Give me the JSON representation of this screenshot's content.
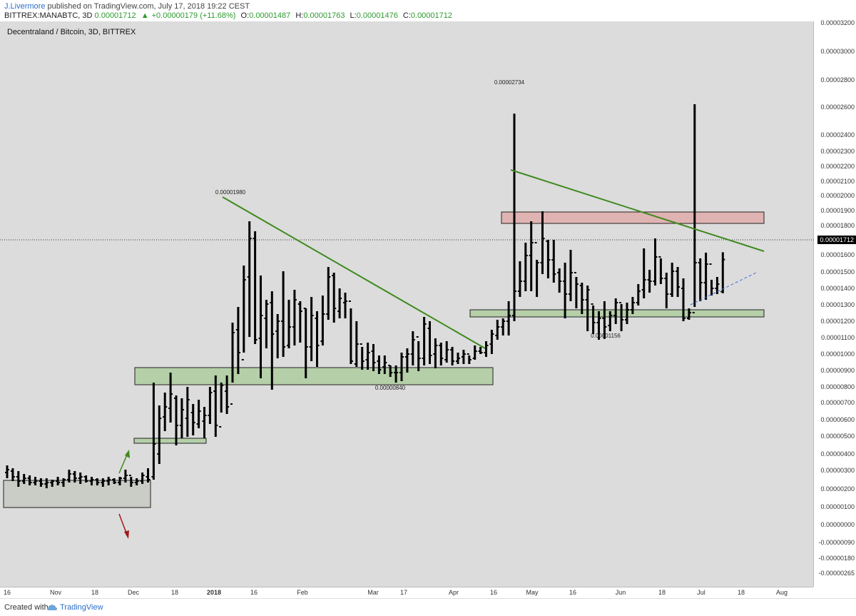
{
  "header": {
    "author": "J.Livermore",
    "published": "published on TradingView.com, July 17, 2018 19:22 CEST",
    "symbol": "BITTREX:MANABTC, 3D",
    "last": "0.00001712",
    "change": "+0.00000179 (+11.68%)",
    "o_label": "O:",
    "o_value": "0.00001487",
    "h_label": "H:",
    "h_value": "0.00001763",
    "l_label": "L:",
    "l_value": "0.00001476",
    "c_label": "C:",
    "c_value": "0.00001712"
  },
  "chart_title": "Decentraland / Bitcoin, 3D, BITTREX",
  "footer": {
    "created_with": "Created with",
    "brand": "TradingView"
  },
  "current_price_label": "0.00001712",
  "annotations": {
    "high1": "0.00001980",
    "high2": "0.00002734",
    "low1": "0.00000840",
    "low2": "0.00001156"
  },
  "colors": {
    "background": "#dcdcdc",
    "bars": "#000000",
    "trendline": "#3f8a1f",
    "support_zone": "#b5cfa9",
    "resistance_zone": "#e0b3b3",
    "up_arrow": "#3f8a1f",
    "down_arrow": "#a11a1a",
    "dashed_line": "#4a6fd8"
  },
  "icons": {
    "tradingview": "tradingview-cloud-icon"
  },
  "chart_data": {
    "type": "bar",
    "title": "Decentraland / Bitcoin, 3D, BITTREX",
    "x_ticks": [
      "16",
      "Nov",
      "18",
      "Dec",
      "18",
      "2018",
      "16",
      "Feb",
      "Mar",
      "17",
      "Apr",
      "16",
      "May",
      "16",
      "Jun",
      "18",
      "Jul",
      "18",
      "Aug"
    ],
    "y_ticks": [
      "0.00003200",
      "0.00003000",
      "0.00002800",
      "0.00002600",
      "0.00002400",
      "0.00002300",
      "0.00002200",
      "0.00002100",
      "0.00002000",
      "0.00001900",
      "0.00001800",
      "0.00001700",
      "0.00001600",
      "0.00001500",
      "0.00001400",
      "0.00001300",
      "0.00001200",
      "0.00001100",
      "0.00001000",
      "0.00000900",
      "0.00000800",
      "0.00000700",
      "0.00000600",
      "0.00000500",
      "0.00000400",
      "0.00000300",
      "0.00000200",
      "0.00000100",
      "0.00000000",
      "-0.00000090",
      "-0.00000180",
      "-0.00000265"
    ],
    "candles": [
      [
        2.7,
        1.8,
        2.2,
        2.4
      ],
      [
        2.5,
        1.6,
        2.3,
        1.9
      ],
      [
        2.3,
        1.2,
        1.9,
        1.6
      ],
      [
        2.1,
        1.4,
        1.6,
        1.8
      ],
      [
        2.0,
        1.3,
        1.8,
        1.5
      ],
      [
        1.9,
        1.3,
        1.5,
        1.6
      ],
      [
        1.8,
        1.2,
        1.6,
        1.4
      ],
      [
        1.8,
        1.1,
        1.4,
        1.5
      ],
      [
        1.7,
        1.2,
        1.5,
        1.6
      ],
      [
        1.9,
        1.3,
        1.6,
        1.5
      ],
      [
        1.8,
        1.2,
        1.5,
        1.7
      ],
      [
        2.4,
        1.5,
        1.7,
        2.1
      ],
      [
        2.3,
        1.5,
        2.1,
        1.8
      ],
      [
        2.2,
        1.4,
        1.8,
        1.9
      ],
      [
        2.0,
        1.5,
        1.9,
        1.6
      ],
      [
        1.9,
        1.3,
        1.6,
        1.7
      ],
      [
        1.8,
        1.3,
        1.7,
        1.5
      ],
      [
        1.8,
        1.2,
        1.5,
        1.6
      ],
      [
        1.9,
        1.3,
        1.6,
        1.7
      ],
      [
        1.8,
        1.4,
        1.7,
        1.5
      ],
      [
        1.9,
        1.3,
        1.5,
        1.8
      ],
      [
        2.4,
        1.5,
        1.8,
        2.0
      ],
      [
        1.9,
        1.2,
        2.0,
        1.5
      ],
      [
        1.8,
        1.3,
        1.5,
        1.6
      ],
      [
        2.2,
        1.4,
        1.6,
        2.0
      ],
      [
        2.5,
        1.5,
        1.9,
        1.7
      ],
      [
        8.5,
        1.7,
        1.9,
        4.2
      ],
      [
        6.9,
        2.8,
        3.5,
        6.0
      ],
      [
        7.8,
        5.1,
        6.1,
        6.8
      ],
      [
        9.2,
        5.7,
        6.7,
        7.7
      ],
      [
        7.6,
        4.1,
        7.4,
        5.5
      ],
      [
        7.4,
        4.6,
        5.5,
        6.6
      ],
      [
        8.2,
        4.7,
        6.0,
        7.3
      ],
      [
        7.0,
        4.8,
        6.4,
        5.7
      ],
      [
        7.3,
        5.3,
        5.6,
        6.5
      ],
      [
        6.8,
        4.6,
        5.8,
        6.2
      ],
      [
        8.2,
        5.6,
        6.2,
        7.8
      ],
      [
        9.0,
        4.7,
        7.9,
        5.5
      ],
      [
        8.5,
        6.4,
        5.4,
        8.3
      ],
      [
        9.0,
        6.3,
        7.9,
        6.8
      ],
      [
        12.7,
        8.5,
        7.0,
        12.0
      ],
      [
        13.8,
        9.1,
        12.2,
        10.6
      ],
      [
        16.7,
        10.6,
        10.1,
        15.7
      ],
      [
        19.8,
        11.7,
        15.9,
        18.6
      ],
      [
        19.1,
        11.2,
        18.6,
        11.5
      ],
      [
        16.0,
        8.8,
        11.6,
        13.2
      ],
      [
        14.3,
        10.9,
        13.0,
        14.0
      ],
      [
        14.9,
        8.0,
        14.1,
        11.9
      ],
      [
        13.3,
        10.2,
        12.1,
        12.8
      ],
      [
        16.3,
        10.3,
        12.8,
        11.0
      ],
      [
        14.3,
        10.9,
        11.1,
        12.4
      ],
      [
        15.0,
        11.1,
        12.4,
        14.3
      ],
      [
        14.2,
        11.3,
        14.0,
        13.5
      ],
      [
        13.7,
        8.8,
        13.7,
        11.0
      ],
      [
        14.5,
        10.0,
        11.0,
        13.2
      ],
      [
        13.5,
        9.6,
        13.0,
        11.1
      ],
      [
        14.6,
        11.1,
        11.4,
        13.3
      ],
      [
        16.6,
        12.9,
        13.3,
        15.9
      ],
      [
        16.2,
        12.7,
        16.0,
        13.7
      ],
      [
        15.1,
        13.0,
        13.5,
        14.4
      ],
      [
        14.8,
        13.0,
        14.1,
        14.2
      ],
      [
        13.7,
        9.8,
        14.2,
        10.0
      ],
      [
        12.8,
        9.6,
        9.8,
        11.2
      ],
      [
        11.0,
        9.4,
        11.2,
        10.0
      ],
      [
        11.3,
        9.4,
        10.1,
        10.6
      ],
      [
        11.2,
        9.3,
        10.7,
        9.9
      ],
      [
        10.4,
        9.1,
        10.0,
        9.4
      ],
      [
        10.4,
        9.1,
        9.6,
        9.9
      ],
      [
        9.7,
        8.9,
        9.7,
        9.2
      ],
      [
        9.7,
        8.5,
        9.2,
        9.2
      ],
      [
        10.6,
        8.6,
        9.2,
        10.3
      ],
      [
        10.9,
        9.2,
        10.3,
        10.5
      ],
      [
        12.1,
        9.7,
        10.5,
        11.5
      ],
      [
        11.4,
        9.3,
        11.7,
        10.2
      ],
      [
        13.1,
        9.7,
        10.2,
        12.6
      ],
      [
        12.8,
        9.8,
        12.3,
        10.4
      ],
      [
        11.6,
        9.5,
        10.5,
        11.1
      ],
      [
        11.3,
        9.7,
        11.1,
        10.2
      ],
      [
        11.4,
        9.9,
        10.1,
        10.8
      ],
      [
        11.0,
        9.7,
        10.8,
        10.0
      ],
      [
        10.6,
        9.8,
        10.0,
        10.2
      ],
      [
        10.8,
        9.8,
        10.3,
        10.5
      ],
      [
        10.4,
        9.8,
        10.5,
        10.1
      ],
      [
        11.1,
        10.1,
        10.2,
        10.7
      ],
      [
        11.0,
        10.5,
        10.7,
        10.6
      ],
      [
        11.4,
        10.3,
        10.6,
        11.1
      ],
      [
        12.2,
        10.5,
        11.2,
        11.9
      ],
      [
        12.9,
        11.5,
        11.8,
        12.4
      ],
      [
        13.0,
        11.8,
        12.4,
        12.8
      ],
      [
        14.2,
        11.8,
        12.8,
        13.2
      ],
      [
        27.34,
        12.8,
        13.2,
        14.9
      ],
      [
        17.0,
        14.5,
        14.9,
        15.6
      ],
      [
        18.3,
        14.9,
        15.6,
        17.4
      ],
      [
        19.8,
        14.9,
        17.4,
        18.3
      ],
      [
        17.1,
        14.5,
        18.3,
        16.9
      ],
      [
        20.5,
        16.1,
        16.9,
        18.6
      ],
      [
        18.5,
        15.8,
        18.4,
        17.1
      ],
      [
        18.5,
        15.5,
        17.1,
        16.1
      ],
      [
        16.5,
        14.8,
        16.2,
        15.6
      ],
      [
        16.9,
        13.0,
        15.6,
        14.7
      ],
      [
        17.8,
        14.2,
        14.7,
        16.2
      ],
      [
        15.9,
        13.7,
        16.2,
        15.4
      ],
      [
        15.5,
        13.3,
        15.3,
        14.3
      ],
      [
        15.3,
        12.1,
        14.3,
        15.0
      ],
      [
        13.9,
        11.9,
        14.0,
        12.7
      ],
      [
        13.5,
        11.5,
        12.7,
        13.0
      ],
      [
        14.2,
        11.56,
        13.0,
        12.4
      ],
      [
        13.5,
        12.1,
        12.5,
        13.2
      ],
      [
        14.4,
        12.6,
        13.2,
        14.1
      ],
      [
        14.0,
        12.1,
        14.1,
        12.9
      ],
      [
        14.1,
        12.6,
        12.9,
        13.6
      ],
      [
        14.5,
        13.3,
        13.6,
        14.1
      ],
      [
        15.4,
        13.9,
        14.1,
        14.9
      ],
      [
        17.9,
        14.4,
        15.0,
        15.7
      ],
      [
        16.4,
        14.8,
        15.7,
        15.6
      ],
      [
        18.6,
        15.3,
        15.6,
        17.3
      ],
      [
        17.2,
        15.4,
        17.3,
        15.8
      ],
      [
        16.2,
        13.7,
        15.8,
        14.7
      ],
      [
        16.9,
        14.5,
        14.7,
        16.3
      ],
      [
        16.6,
        14.5,
        16.3,
        15.2
      ],
      [
        15.8,
        12.8,
        15.1,
        13.0
      ],
      [
        13.7,
        12.9,
        13.0,
        13.4
      ],
      [
        28.0,
        13.8,
        13.4,
        16.9
      ],
      [
        17.2,
        14.2,
        16.9,
        15.5
      ],
      [
        17.6,
        14.3,
        15.5,
        16.8
      ],
      [
        15.7,
        14.6,
        16.8,
        15.1
      ],
      [
        15.9,
        14.7,
        15.1,
        15.4
      ],
      [
        17.63,
        14.76,
        14.87,
        17.12
      ]
    ]
  }
}
